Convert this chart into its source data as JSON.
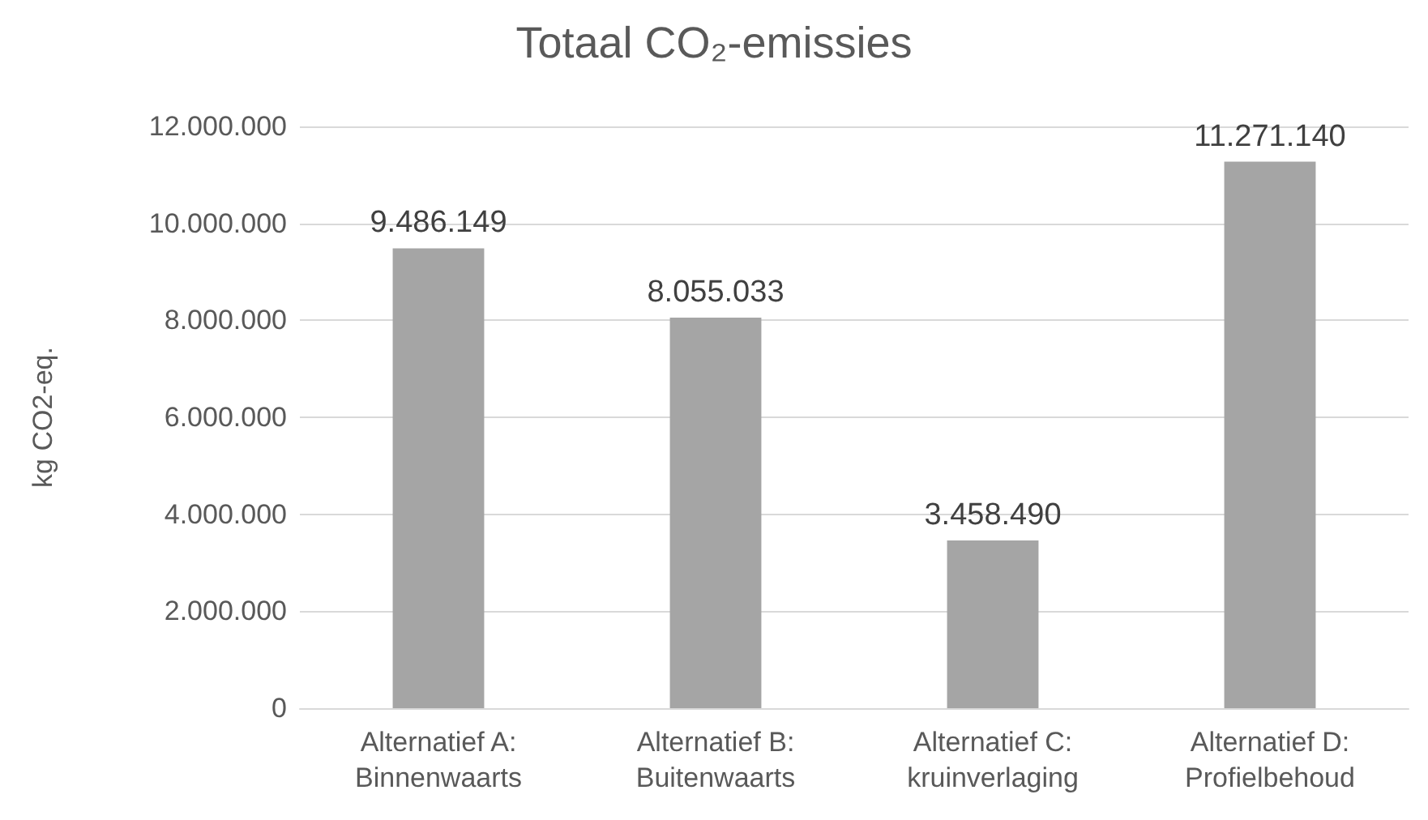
{
  "chart_data": {
    "type": "bar",
    "title": "Totaal CO₂-emissies",
    "ylabel": "kg CO2-eq.",
    "categories": [
      "Alternatief A:\nBinnenwaarts",
      "Alternatief B:\nBuitenwaarts",
      "Alternatief C:\nkruinverlaging",
      "Alternatief D:\nProfielbehoud"
    ],
    "values": [
      9486149,
      8055033,
      3458490,
      11271140
    ],
    "value_labels": [
      "9.486.149",
      "8.055.033",
      "3.458.490",
      "11.271.140"
    ],
    "color": "#a5a5a5",
    "ylim": [
      0,
      12000000
    ],
    "yticks": [
      {
        "value": 0,
        "label": "0"
      },
      {
        "value": 2000000,
        "label": "2.000.000"
      },
      {
        "value": 4000000,
        "label": "4.000.000"
      },
      {
        "value": 6000000,
        "label": "6.000.000"
      },
      {
        "value": 8000000,
        "label": "8.000.000"
      },
      {
        "value": 10000000,
        "label": "10.000.000"
      },
      {
        "value": 12000000,
        "label": "12.000.000"
      }
    ],
    "grid": true
  }
}
